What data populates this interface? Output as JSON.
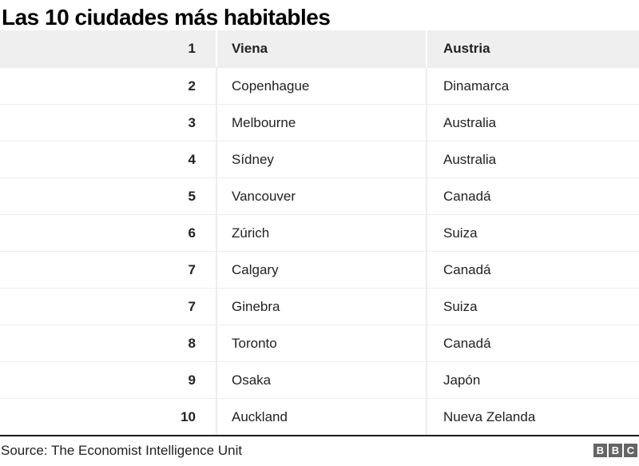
{
  "page": {
    "title": "Las 10 ciudades más habitables",
    "footer": {
      "source": "Source: The Economist Intelligence Unit",
      "logo_letters": [
        "B",
        "B",
        "C"
      ]
    }
  },
  "table": {
    "rows": [
      {
        "rank": "1",
        "city": "Viena",
        "country": "Austria",
        "highlight": true
      },
      {
        "rank": "2",
        "city": "Copenhague",
        "country": "Dinamarca",
        "highlight": false
      },
      {
        "rank": "3",
        "city": "Melbourne",
        "country": "Australia",
        "highlight": false
      },
      {
        "rank": "4",
        "city": "Sídney",
        "country": "Australia",
        "highlight": false
      },
      {
        "rank": "5",
        "city": "Vancouver",
        "country": "Canadá",
        "highlight": false
      },
      {
        "rank": "6",
        "city": "Zúrich",
        "country": "Suiza",
        "highlight": false
      },
      {
        "rank": "7",
        "city": "Calgary",
        "country": "Canadá",
        "highlight": false
      },
      {
        "rank": "7",
        "city": "Ginebra",
        "country": "Suiza",
        "highlight": false
      },
      {
        "rank": "8",
        "city": "Toronto",
        "country": "Canadá",
        "highlight": false
      },
      {
        "rank": "9",
        "city": "Osaka",
        "country": "Japón",
        "highlight": false
      },
      {
        "rank": "10",
        "city": "Auckland",
        "country": "Nueva Zelanda",
        "highlight": false
      }
    ]
  },
  "colors": {
    "title_text": "#000000",
    "text": "#222222",
    "header_row_bg": "#efefef",
    "row_divider": "#ededed",
    "column_divider": "#ededed",
    "header_column_divider": "#ffffff",
    "footer_rule": "#1a1a1a",
    "logo_bg": "#656565",
    "logo_text": "#ffffff"
  },
  "chart_data": {
    "type": "table",
    "title": "Las 10 ciudades más habitables",
    "rows": [
      [
        "1",
        "Viena",
        "Austria"
      ],
      [
        "2",
        "Copenhague",
        "Dinamarca"
      ],
      [
        "3",
        "Melbourne",
        "Australia"
      ],
      [
        "4",
        "Sídney",
        "Australia"
      ],
      [
        "5",
        "Vancouver",
        "Canadá"
      ],
      [
        "6",
        "Zúrich",
        "Suiza"
      ],
      [
        "7",
        "Calgary",
        "Canadá"
      ],
      [
        "7",
        "Ginebra",
        "Suiza"
      ],
      [
        "8",
        "Toronto",
        "Canadá"
      ],
      [
        "9",
        "Osaka",
        "Japón"
      ],
      [
        "10",
        "Auckland",
        "Nueva Zelanda"
      ]
    ],
    "source": "Source: The Economist Intelligence Unit",
    "layout": "first row highlighted grey, rank column right-aligned bold, no column headers"
  }
}
